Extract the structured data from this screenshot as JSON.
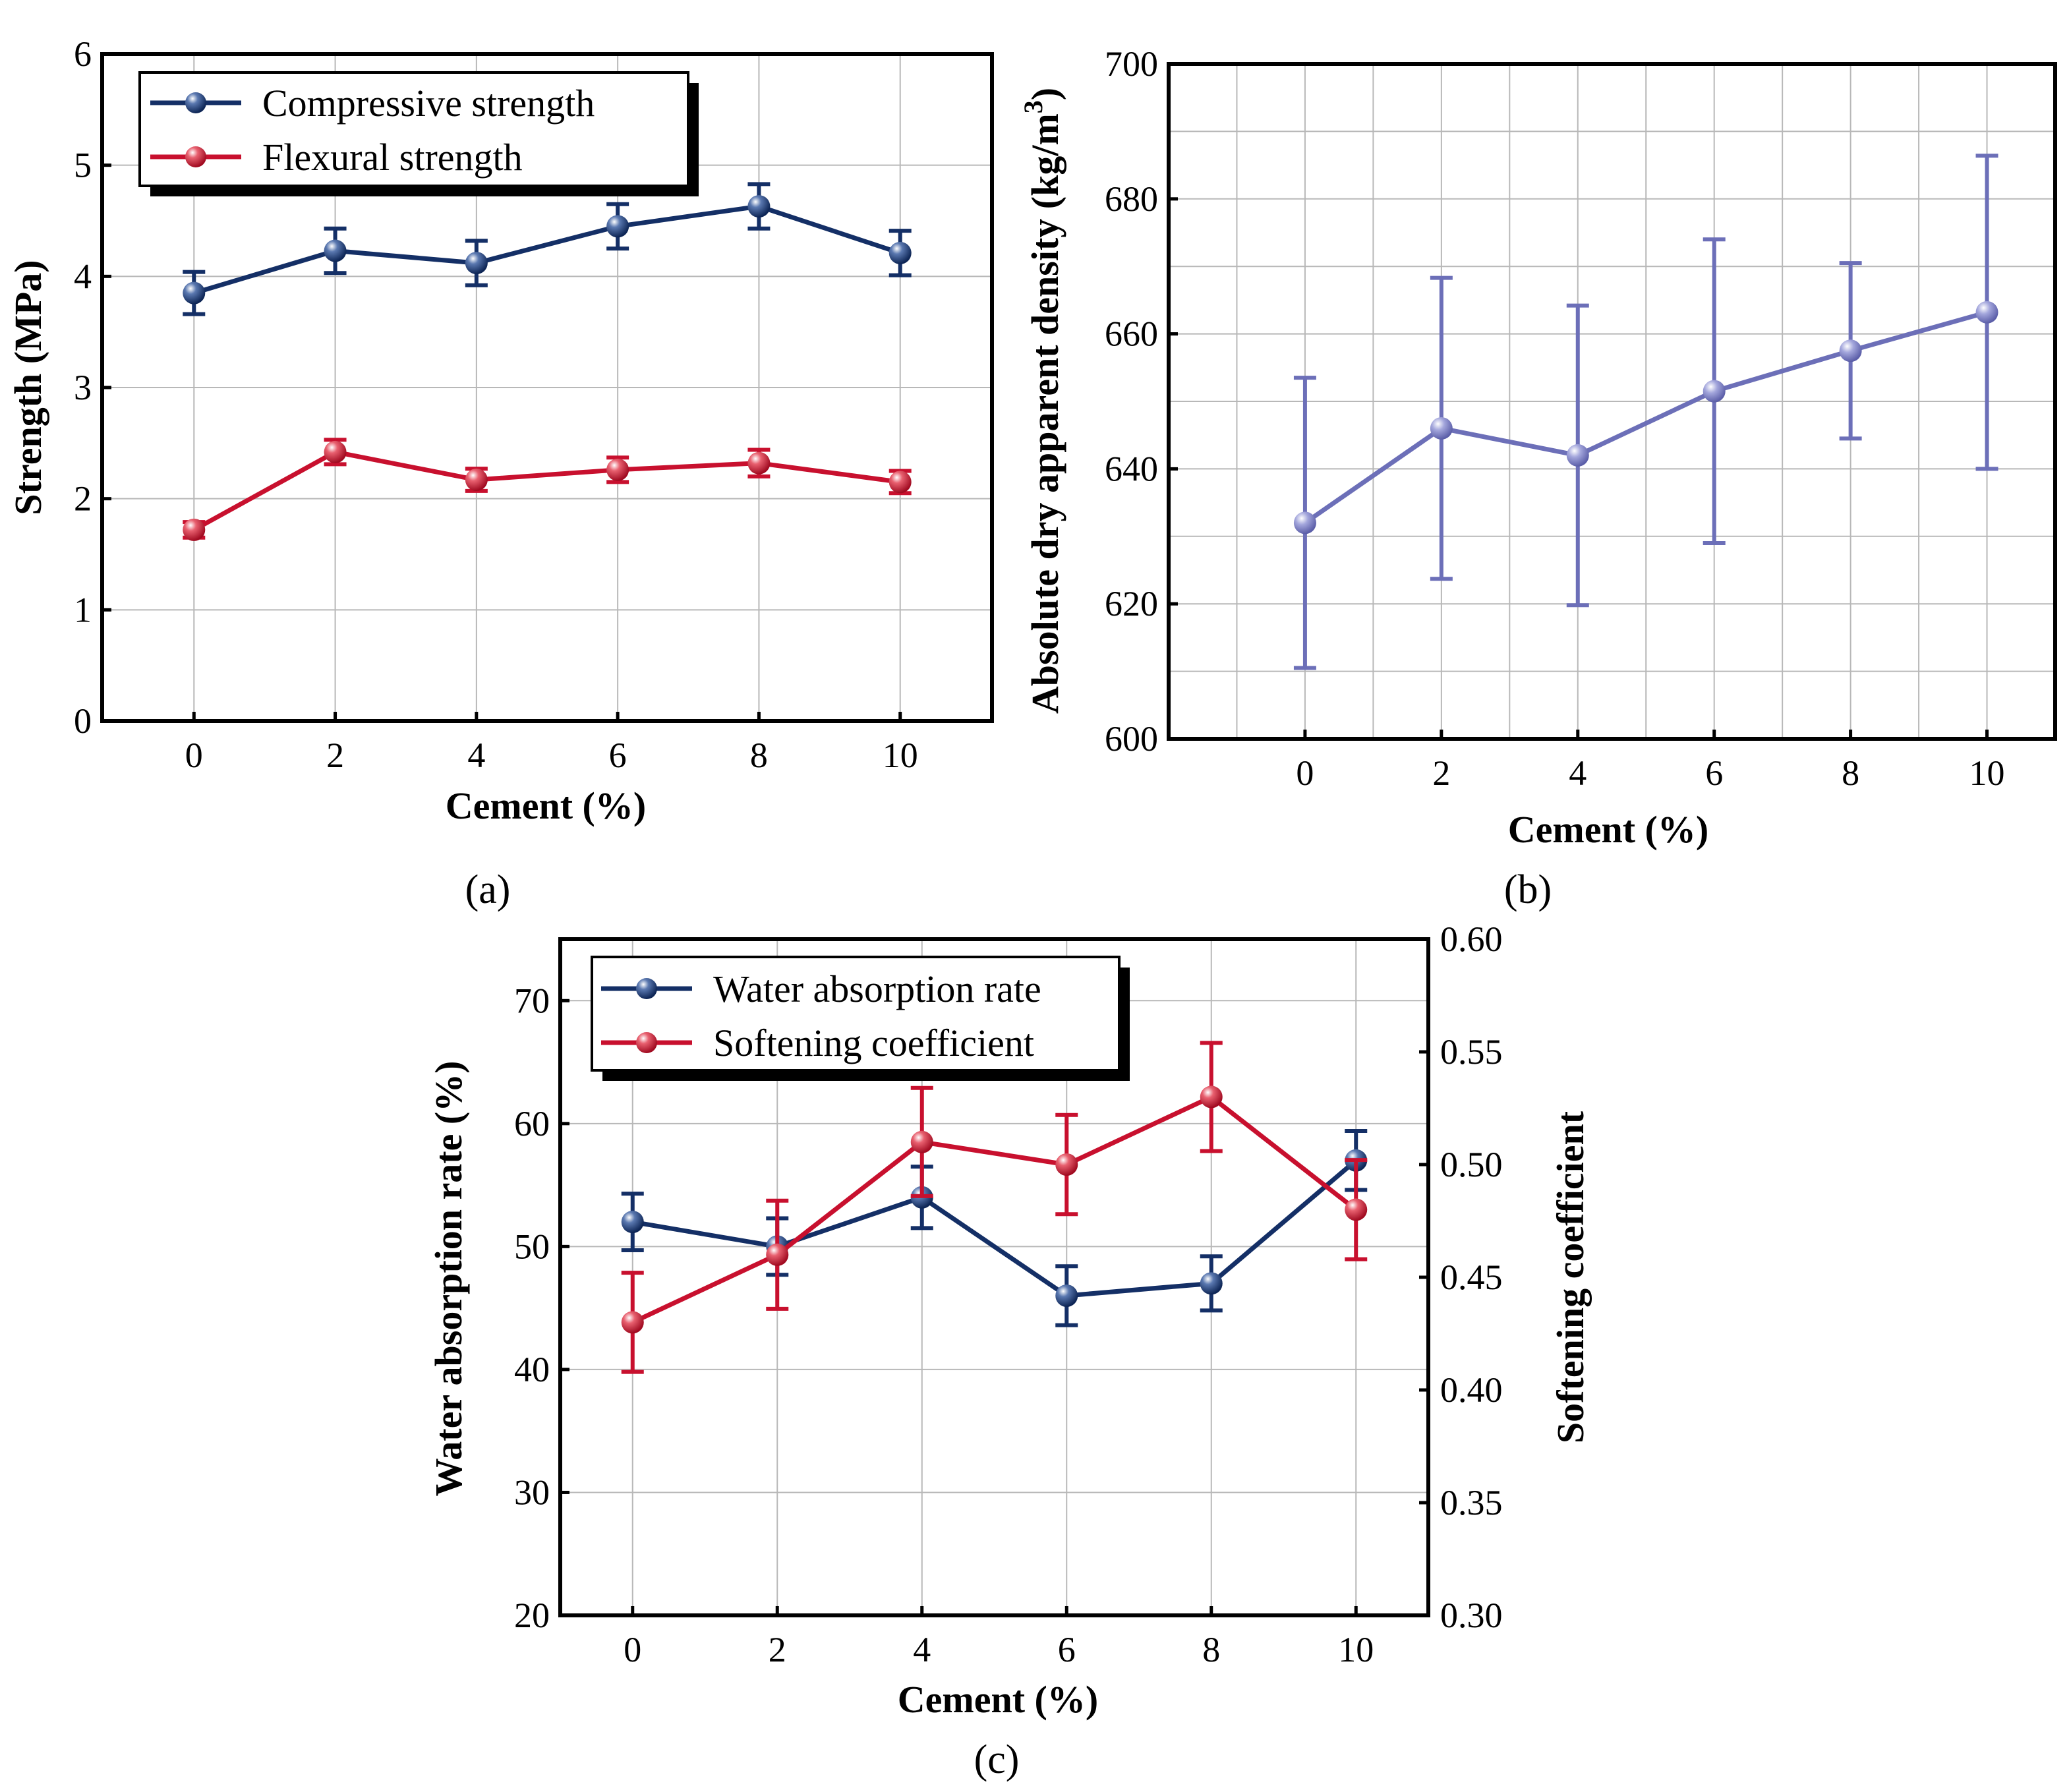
{
  "colors": {
    "navy": "#142f66",
    "red": "#c8102e",
    "periwinkle": "#6c6fb8",
    "grid": "#b8b8b8"
  },
  "panels": {
    "a": {
      "label": "(a)",
      "xlabel": "Cement (%)",
      "ylabel": "Strength (MPa)",
      "xticks": [
        "0",
        "2",
        "4",
        "6",
        "8",
        "10"
      ],
      "yticks": [
        "0",
        "1",
        "2",
        "3",
        "4",
        "5",
        "6"
      ],
      "legend": [
        "Compressive strength",
        "Flexural strength"
      ]
    },
    "b": {
      "label": "(b)",
      "xlabel": "Cement (%)",
      "ylabel_main": "Absolute dry apparent density (kg/m",
      "ylabel_sup": "3",
      "ylabel_close": ")",
      "xticks": [
        "0",
        "2",
        "4",
        "6",
        "8",
        "10"
      ],
      "yticks": [
        "600",
        "620",
        "640",
        "660",
        "680",
        "700"
      ]
    },
    "c": {
      "label": "(c)",
      "xlabel": "Cement (%)",
      "ylabel_left": "Water absorption rate (%)",
      "ylabel_right": "Softening coefficient",
      "xticks": [
        "0",
        "2",
        "4",
        "6",
        "8",
        "10"
      ],
      "yticks_left": [
        "20",
        "30",
        "40",
        "50",
        "60",
        "70"
      ],
      "yticks_right": [
        "0.30",
        "0.35",
        "0.40",
        "0.45",
        "0.50",
        "0.55",
        "0.60"
      ],
      "legend": [
        "Water absorption rate",
        "Softening coefficient"
      ]
    }
  },
  "chart_data": [
    {
      "type": "line",
      "panel": "a",
      "x": [
        0,
        2,
        4,
        6,
        8,
        10
      ],
      "xlim": [
        -1.3,
        11.3
      ],
      "ylim": [
        0,
        6
      ],
      "grid": true,
      "legend_position": "top-left",
      "series": [
        {
          "name": "Compressive strength",
          "color": "navy",
          "values": [
            3.85,
            4.23,
            4.12,
            4.45,
            4.63,
            4.21
          ],
          "errors": [
            0.19,
            0.2,
            0.2,
            0.2,
            0.2,
            0.2
          ]
        },
        {
          "name": "Flexural strength",
          "color": "red",
          "values": [
            1.72,
            2.42,
            2.17,
            2.26,
            2.32,
            2.15
          ],
          "errors": [
            0.07,
            0.11,
            0.1,
            0.11,
            0.12,
            0.1
          ]
        }
      ]
    },
    {
      "type": "line",
      "panel": "b",
      "x": [
        0,
        2,
        4,
        6,
        8,
        10
      ],
      "xlim": [
        -2,
        11
      ],
      "ylim": [
        600,
        700
      ],
      "grid": true,
      "series": [
        {
          "color": "periwinkle",
          "values": [
            632,
            646,
            642,
            651.5,
            657.5,
            663.2
          ],
          "errors": [
            21.5,
            22.3,
            22.2,
            22.5,
            13,
            23.2
          ]
        }
      ]
    },
    {
      "type": "line",
      "panel": "c",
      "x": [
        0,
        2,
        4,
        6,
        8,
        10
      ],
      "xlim": [
        -1,
        11
      ],
      "ylim_left": [
        20,
        75
      ],
      "ylim_right": [
        0.3,
        0.6
      ],
      "grid": true,
      "legend_position": "top-left",
      "series": [
        {
          "name": "Water absorption rate",
          "axis": "left",
          "color": "navy",
          "values": [
            52,
            50,
            54,
            46,
            47,
            57
          ],
          "errors": [
            2.3,
            2.3,
            2.5,
            2.4,
            2.2,
            2.4
          ]
        },
        {
          "name": "Softening coefficient",
          "axis": "right",
          "color": "red",
          "values": [
            0.43,
            0.46,
            0.51,
            0.5,
            0.53,
            0.48
          ],
          "errors": [
            0.022,
            0.024,
            0.024,
            0.022,
            0.024,
            0.022
          ]
        }
      ]
    }
  ]
}
